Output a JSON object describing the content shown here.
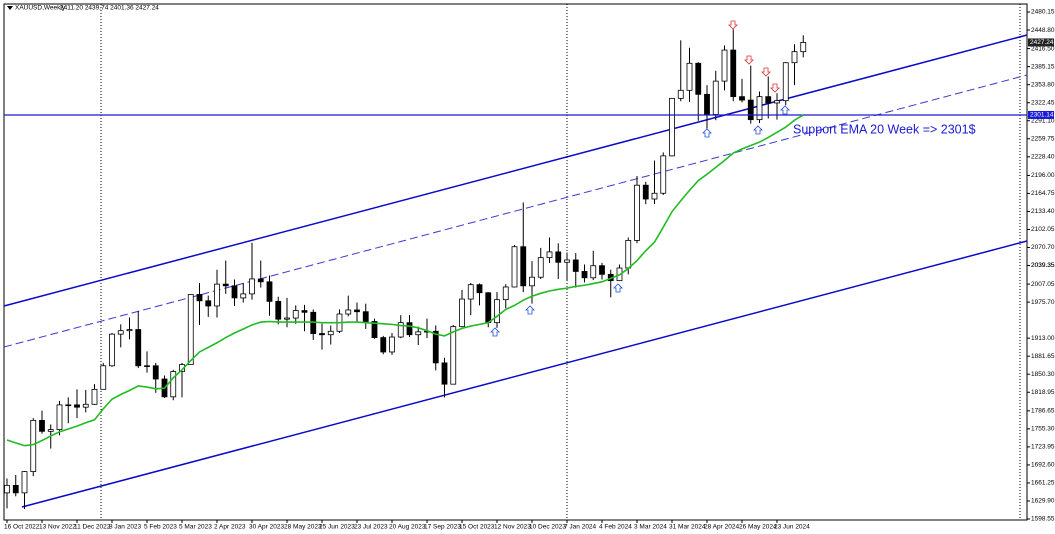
{
  "chart_data": {
    "type": "candlestick",
    "title": "XAUUSD,Weekly",
    "subtitle": "2411.20 2439.74 2401.36 2427.24",
    "annotation": "Support EMA 20 Week => 2301$",
    "categories": [
      "16 Oct 2022",
      null,
      null,
      null,
      "13 Nov 2022",
      null,
      null,
      null,
      "11 Dec 2022",
      null,
      null,
      null,
      "8 Jan 2023",
      null,
      null,
      null,
      "5 Feb 2023",
      null,
      null,
      null,
      "5 Mar 2023",
      null,
      null,
      null,
      "2 Apr 2023",
      null,
      null,
      null,
      "30 Apr 2023",
      null,
      null,
      null,
      "28 May 2023",
      null,
      null,
      null,
      "25 Jun 2023",
      null,
      null,
      null,
      "23 Jul 2023",
      null,
      null,
      null,
      "20 Aug 2023",
      null,
      null,
      null,
      "17 Sep 2023",
      null,
      null,
      null,
      "15 Oct 2023",
      null,
      null,
      null,
      "12 Nov 2023",
      null,
      null,
      null,
      "10 Dec 2023",
      null,
      null,
      null,
      "7 Jan 2024",
      null,
      null,
      null,
      "4 Feb 2024",
      null,
      null,
      null,
      "3 Mar 2024",
      null,
      null,
      null,
      "31 Mar 2024",
      null,
      null,
      null,
      "28 Apr 2024",
      null,
      null,
      null,
      "26 May 2024",
      null,
      null,
      null,
      "23 Jun 2024",
      null,
      null,
      null
    ],
    "open": [
      1644,
      1657,
      1644,
      1681,
      1770,
      1751,
      1754,
      1797,
      1797,
      1793,
      1798,
      1824,
      1865,
      1920,
      1926,
      1928,
      1865,
      1865,
      1842,
      1811,
      1855,
      1867,
      1989,
      1978,
      1969,
      2007,
      2004,
      1983,
      1990,
      2016,
      2011,
      1977,
      1946,
      1948,
      1961,
      1958,
      1921,
      1919,
      1925,
      1955,
      1962,
      1959,
      1942,
      1914,
      1889,
      1915,
      1940,
      1919,
      1924,
      1925,
      1870,
      1833,
      1933,
      1981,
      2006,
      1992,
      1940,
      1980,
      2002,
      2072,
      2004,
      2019,
      2053,
      2063,
      2045,
      2049,
      2029,
      2018,
      2039,
      2024,
      2013,
      2035,
      2083,
      2179,
      2155,
      2165,
      2230,
      2330,
      2344,
      2391,
      2337,
      2302,
      2360,
      2414,
      2333,
      2327,
      2293,
      2333,
      2322,
      2326,
      2392,
      2411.2
    ],
    "high": [
      1669,
      1675,
      1682,
      1774,
      1787,
      1763,
      1804,
      1810,
      1824,
      1823,
      1833,
      1870,
      1922,
      1937,
      1949,
      1960,
      1890,
      1870,
      1848,
      1858,
      1870,
      1989,
      2009,
      1987,
      2032,
      2048,
      2015,
      2009,
      2079,
      2048,
      2022,
      1985,
      1983,
      1970,
      1971,
      1963,
      1938,
      1935,
      1963,
      1987,
      1975,
      1973,
      1947,
      1917,
      1922,
      1953,
      1953,
      1933,
      1947,
      1935,
      1879,
      1936,
      1997,
      2009,
      2008,
      1993,
      1993,
      2007,
      2075,
      2149,
      2047,
      2070,
      2088,
      2078,
      2062,
      2061,
      2041,
      2065,
      2044,
      2032,
      2041,
      2088,
      2195,
      2185,
      2222,
      2236,
      2330,
      2431,
      2418,
      2393,
      2353,
      2378,
      2422,
      2450,
      2364,
      2387,
      2342,
      2368,
      2339,
      2393,
      2424,
      2439.74
    ],
    "low": [
      1617,
      1638,
      1616,
      1673,
      1747,
      1721,
      1744,
      1765,
      1774,
      1784,
      1797,
      1824,
      1863,
      1897,
      1911,
      1861,
      1853,
      1818,
      1809,
      1805,
      1810,
      1867,
      1936,
      1950,
      1949,
      1990,
      1969,
      1975,
      1980,
      2001,
      1952,
      1937,
      1932,
      1938,
      1925,
      1910,
      1893,
      1902,
      1922,
      1951,
      1942,
      1929,
      1912,
      1885,
      1884,
      1913,
      1915,
      1901,
      1913,
      1857,
      1810,
      1833,
      1932,
      1953,
      1970,
      1932,
      1931,
      1965,
      2001,
      1993,
      1973,
      2016,
      2044,
      2016,
      2013,
      2001,
      2010,
      2014,
      2015,
      1984,
      2013,
      2024,
      2078,
      2146,
      2146,
      2162,
      2229,
      2325,
      2324,
      2291,
      2277,
      2292,
      2344,
      2325,
      2323,
      2286,
      2287,
      2295,
      2293,
      2318,
      2353,
      2401.36
    ],
    "close": [
      1657,
      1644,
      1681,
      1770,
      1751,
      1754,
      1797,
      1797,
      1793,
      1798,
      1824,
      1865,
      1920,
      1926,
      1928,
      1865,
      1865,
      1842,
      1811,
      1855,
      1867,
      1989,
      1978,
      1969,
      2007,
      2004,
      1983,
      1990,
      2016,
      2011,
      1977,
      1946,
      1948,
      1961,
      1958,
      1921,
      1919,
      1925,
      1955,
      1962,
      1959,
      1942,
      1914,
      1889,
      1915,
      1940,
      1919,
      1924,
      1925,
      1870,
      1833,
      1933,
      1981,
      2006,
      1992,
      1940,
      1980,
      2002,
      2072,
      2004,
      2019,
      2053,
      2063,
      2045,
      2049,
      2029,
      2018,
      2039,
      2024,
      2013,
      2035,
      2083,
      2179,
      2155,
      2165,
      2230,
      2330,
      2344,
      2391,
      2337,
      2302,
      2360,
      2414,
      2333,
      2327,
      2293,
      2333,
      2322,
      2326,
      2392,
      2411.2,
      2427.24
    ],
    "ema": {
      "color": "#22bb22",
      "values": [
        1736,
        1731,
        1726,
        1728,
        1735,
        1743,
        1750,
        1755,
        1760,
        1766,
        1771,
        1790,
        1807,
        1815,
        1822,
        1830,
        1828,
        1825,
        1826,
        1844,
        1858,
        1874,
        1889,
        1897,
        1905,
        1914,
        1922,
        1929,
        1936,
        1941,
        1942,
        1941,
        1941,
        1941,
        1941,
        1941,
        1940,
        1940,
        1940,
        1941,
        1941,
        1940,
        1939,
        1938,
        1937,
        1935,
        1934,
        1931,
        1926,
        1920,
        1917,
        1924,
        1930,
        1934,
        1937,
        1940,
        1951,
        1963,
        1970,
        1979,
        1986,
        1991,
        1995,
        1998,
        2000,
        2003,
        2005,
        2008,
        2011,
        2017,
        2023,
        2034,
        2048,
        2065,
        2080,
        2106,
        2133,
        2152,
        2170,
        2187,
        2198,
        2210,
        2222,
        2235,
        2242,
        2248,
        2254,
        2262,
        2271,
        2280,
        2292,
        2301
      ]
    },
    "up_color": "#ffffff",
    "down_color": "#000000",
    "support_level": {
      "value": 2301.14,
      "label": "2301.14",
      "color": "#1a1ad4"
    },
    "last_price": {
      "value": 2427.24,
      "label": "2427.24",
      "color": "#222222"
    },
    "ylim": [
      1596.8,
      2494.1
    ],
    "yticks": [
      {
        "value": 2480.15,
        "label": "2480.15"
      },
      {
        "value": 2448.8,
        "label": "2448.80"
      },
      {
        "value": 2416.5,
        "label": "2416.50"
      },
      2385.15,
      {
        "value": 2353.8,
        "label": "2353.80"
      },
      2322.45,
      {
        "value": 2291.1,
        "label": "2291.10"
      },
      2259.75,
      {
        "value": 2228.4,
        "label": "2228.40"
      },
      {
        "value": 2196,
        "label": "2196.00"
      },
      2164.75,
      {
        "value": 2133.4,
        "label": "2133.40"
      },
      2102.05,
      {
        "value": 2070.7,
        "label": "2070.70"
      },
      2039.35,
      2007.05,
      {
        "value": 1975.7,
        "label": "1975.70"
      },
      2039.35,
      {
        "value": 1913,
        "label": "1913.00"
      },
      1881.65,
      {
        "value": 1850.3,
        "label": "1850.30"
      },
      1818.95,
      1786.65,
      {
        "value": 1755.3,
        "label": "1755.30"
      },
      1723.95,
      {
        "value": 1692.6,
        "label": "1692.60"
      },
      1661.25,
      {
        "value": 1629.9,
        "label": "1629.90"
      },
      1598.55
    ],
    "grid": false
  }
}
